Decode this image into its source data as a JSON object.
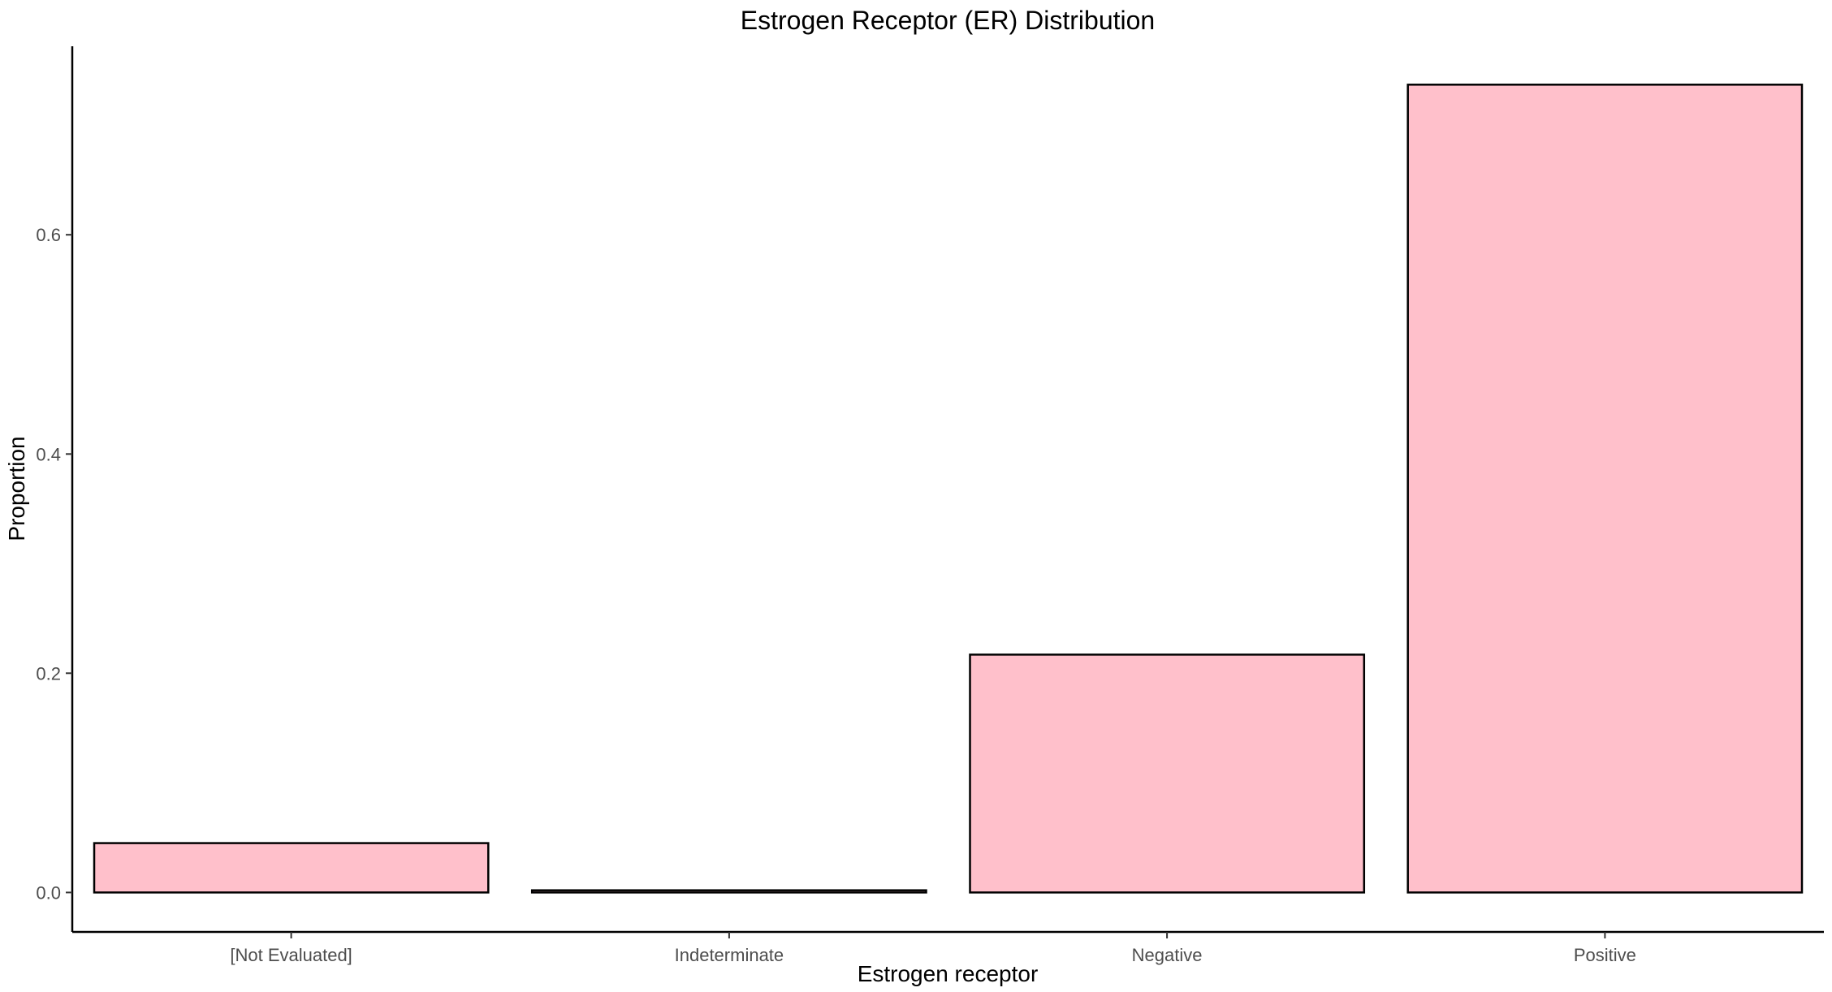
{
  "chart_data": {
    "type": "bar",
    "title": "Estrogen Receptor (ER) Distribution",
    "xlabel": "Estrogen receptor",
    "ylabel": "Proportion",
    "categories": [
      "[Not Evaluated]",
      "Indeterminate",
      "Negative",
      "Positive"
    ],
    "values": [
      0.045,
      0.002,
      0.217,
      0.737
    ],
    "ylim": [
      -0.036,
      0.772
    ],
    "yticks": [
      0.0,
      0.2,
      0.4,
      0.6
    ],
    "ytick_labels": [
      "0.0",
      "0.2",
      "0.4",
      "0.6"
    ],
    "grid": false,
    "legend": "none",
    "bar_fill": "#ffc0cb",
    "bar_stroke": "#000000"
  }
}
